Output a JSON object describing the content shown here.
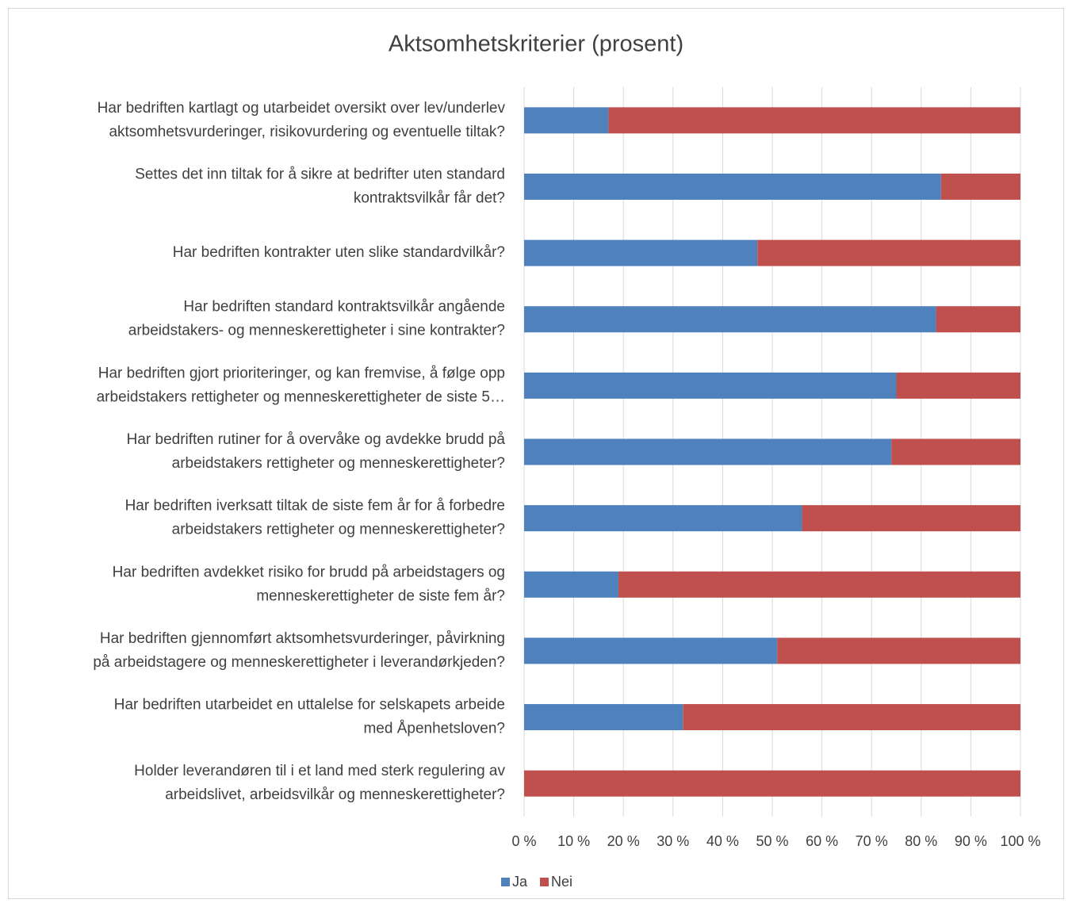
{
  "chart_data": {
    "type": "stacked-bar-horizontal",
    "title": "Aktsomhetskriterier (prosent)",
    "categories": [
      [
        "Har bedriften kartlagt og utarbeidet oversikt over lev/underlev",
        "aktsomhetsvurderinger, risikovurdering og eventuelle tiltak?"
      ],
      [
        "Settes det inn tiltak for å sikre at bedrifter uten standard",
        "kontraktsvilkår får det?"
      ],
      [
        "Har bedriften kontrakter uten slike standardvilkår?"
      ],
      [
        "Har bedriften standard kontraktsvilkår angående",
        "arbeidstakers- og menneskerettigheter i sine kontrakter?"
      ],
      [
        "Har bedriften gjort prioriteringer, og kan fremvise, å  følge opp",
        "arbeidstakers rettigheter og menneskerettigheter de siste 5…"
      ],
      [
        "Har bedriften rutiner for å  overvåke og avdekke brudd på",
        "arbeidstakers rettigheter og menneskerettigheter?"
      ],
      [
        "Har bedriften iverksatt tiltak de siste fem år for å forbedre",
        "arbeidstakers rettigheter og menneskerettigheter?"
      ],
      [
        "Har bedriften avdekket risiko for brudd på arbeidstagers og",
        "menneskerettigheter de siste fem år?"
      ],
      [
        "Har bedriften gjennomført aktsomhetsvurderinger, påvirkning",
        "på arbeidstagere og menneskerettigheter i leverandørkjeden?"
      ],
      [
        "Har bedriften utarbeidet en uttalelse for selskapets arbeide",
        "med Åpenhetsloven?"
      ],
      [
        "Holder leverandøren til i et land med sterk regulering av",
        "arbeidslivet, arbeidsvilkår og menneskerettigheter?"
      ]
    ],
    "series": [
      {
        "name": "Ja",
        "color": "#4f81bd",
        "values": [
          17,
          84,
          47,
          83,
          75,
          74,
          56,
          19,
          51,
          32,
          0
        ]
      },
      {
        "name": "Nei",
        "color": "#c0504d",
        "values": [
          83,
          16,
          53,
          17,
          25,
          26,
          44,
          81,
          49,
          68,
          100
        ]
      }
    ],
    "xlim": [
      0,
      100
    ],
    "xticks": [
      {
        "value": 0,
        "label": "0 %"
      },
      {
        "value": 10,
        "label": "10 %"
      },
      {
        "value": 20,
        "label": "20 %"
      },
      {
        "value": 30,
        "label": "30 %"
      },
      {
        "value": 40,
        "label": "40 %"
      },
      {
        "value": 50,
        "label": "50 %"
      },
      {
        "value": 60,
        "label": "60 %"
      },
      {
        "value": 70,
        "label": "70 %"
      },
      {
        "value": 80,
        "label": "80 %"
      },
      {
        "value": 90,
        "label": "90 %"
      },
      {
        "value": 100,
        "label": "100 %"
      }
    ],
    "grid": true,
    "legend": "bottom"
  }
}
